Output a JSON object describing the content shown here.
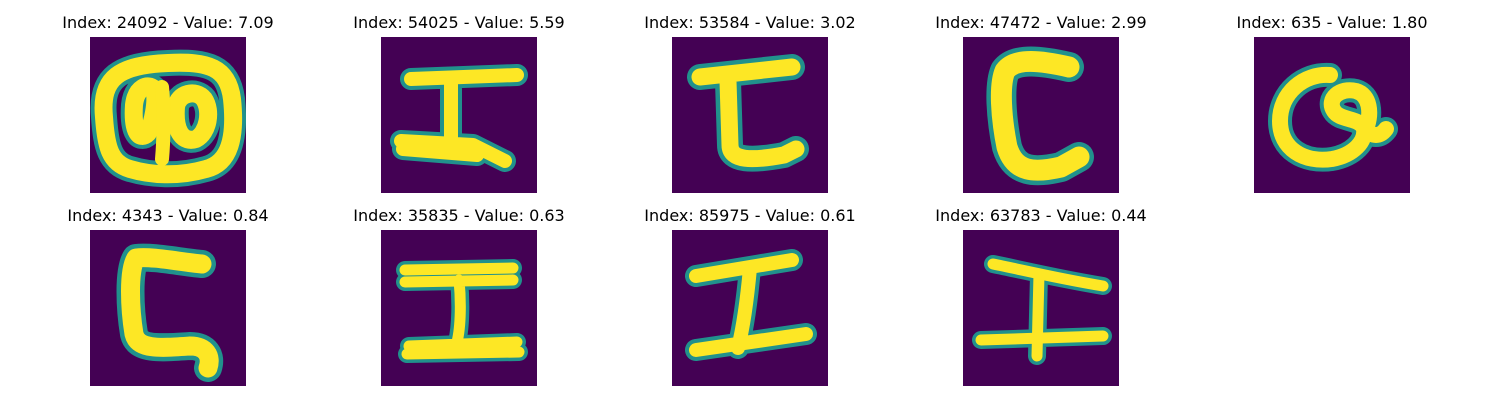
{
  "colors": {
    "background": "#440154",
    "edge": "#21918c",
    "foreground": "#fde725"
  },
  "panels": [
    {
      "index": "24092",
      "value": "7.09",
      "title": "Index: 24092 - Value: 7.09",
      "glyph": "two-loop symbol"
    },
    {
      "index": "54025",
      "value": "5.59",
      "title": "Index: 54025 - Value: 5.59",
      "glyph": "I-beam symbol"
    },
    {
      "index": "53584",
      "value": "3.02",
      "title": "Index: 53584 - Value: 3.02",
      "glyph": "L-hook symbol"
    },
    {
      "index": "47472",
      "value": "2.99",
      "title": "Index: 47472 - Value: 2.99",
      "glyph": "C-shape symbol"
    },
    {
      "index": "635",
      "value": "1.80",
      "title": "Index: 635 - Value: 1.80",
      "glyph": "Q-like loop symbol"
    },
    {
      "index": "4343",
      "value": "0.84",
      "title": "Index: 4343 - Value: 0.84",
      "glyph": "hooked C symbol"
    },
    {
      "index": "35835",
      "value": "0.63",
      "title": "Index: 35835 - Value: 0.63",
      "glyph": "I-beam symbol"
    },
    {
      "index": "85975",
      "value": "0.61",
      "title": "Index: 85975 - Value: 0.61",
      "glyph": "slanted I-beam symbol"
    },
    {
      "index": "63783",
      "value": "0.44",
      "title": "Index: 63783 - Value: 0.44",
      "glyph": "thin I-beam symbol"
    }
  ]
}
